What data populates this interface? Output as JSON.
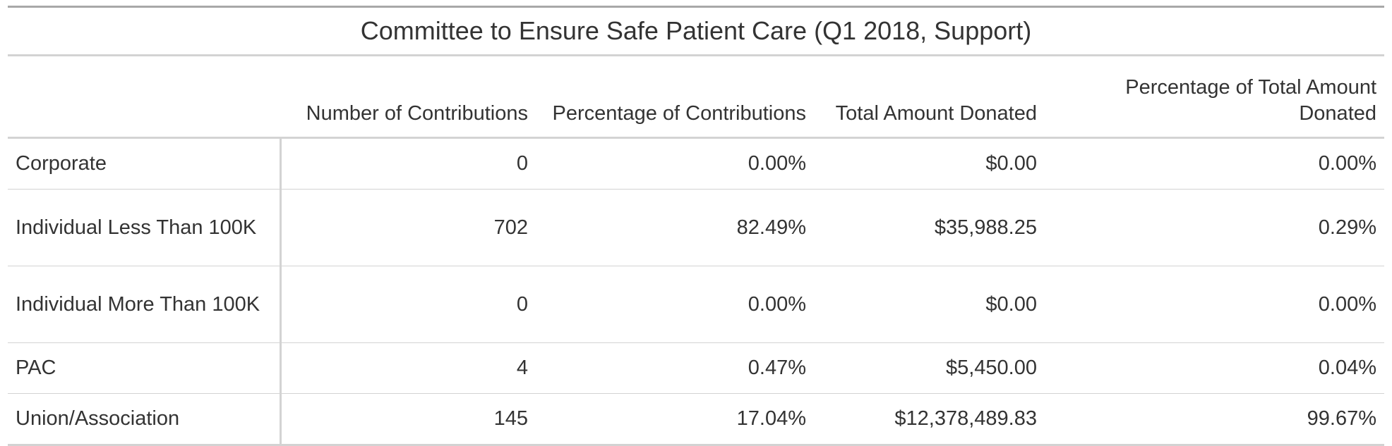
{
  "chart_data": {
    "type": "table",
    "title": "Committee to Ensure Safe Patient Care (Q1 2018, Support)",
    "columns": [
      "Number of Contributions",
      "Percentage of Contributions",
      "Total Amount Donated",
      "Percentage of Total Amount Donated"
    ],
    "rows": [
      {
        "label": "Corporate",
        "count": "0",
        "pct_count": "0.00%",
        "amount": "$0.00",
        "pct_amount": "0.00%"
      },
      {
        "label": "Individual Less Than 100K",
        "count": "702",
        "pct_count": "82.49%",
        "amount": "$35,988.25",
        "pct_amount": "0.29%"
      },
      {
        "label": "Individual More Than 100K",
        "count": "0",
        "pct_count": "0.00%",
        "amount": "$0.00",
        "pct_amount": "0.00%"
      },
      {
        "label": "PAC",
        "count": "4",
        "pct_count": "0.47%",
        "amount": "$5,450.00",
        "pct_amount": "0.04%"
      },
      {
        "label": "Union/Association",
        "count": "145",
        "pct_count": "17.04%",
        "amount": "$12,378,489.83",
        "pct_amount": "99.67%"
      }
    ]
  }
}
